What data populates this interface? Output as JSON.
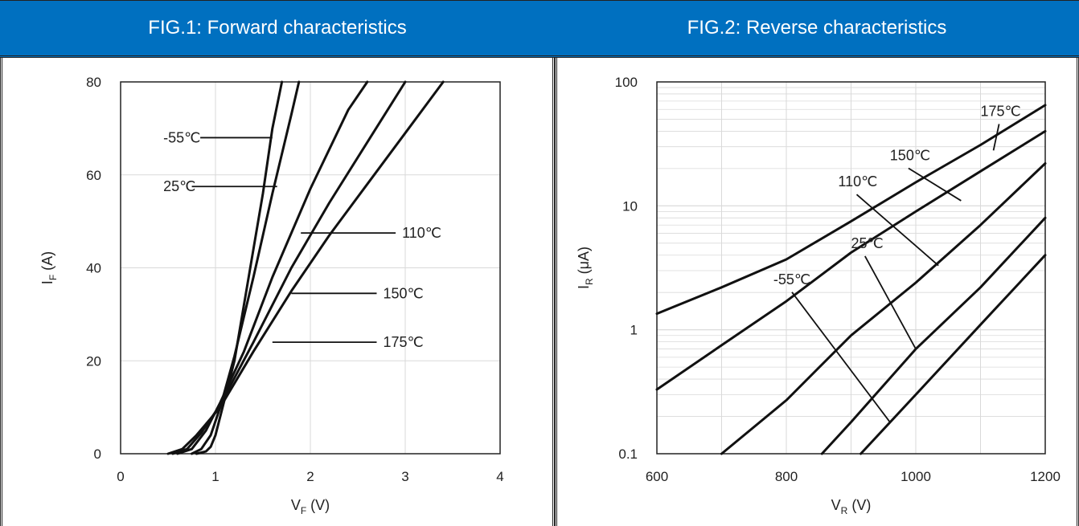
{
  "colors": {
    "header_bg": "#0070c0",
    "header_text": "#ffffff",
    "curve": "#111111",
    "grid": "#d9d9d9"
  },
  "chart_data": [
    {
      "type": "line",
      "title": "FIG.1: Forward characteristics",
      "xlabel": "V",
      "xlabel_sub": "F",
      "xlabel_unit": " (V)",
      "ylabel": "I",
      "ylabel_sub": "F",
      "ylabel_unit": " (A)",
      "xlim": [
        0,
        4
      ],
      "ylim": [
        0,
        80
      ],
      "xticks": [
        "0",
        "1",
        "2",
        "3",
        "4"
      ],
      "yticks": [
        "0",
        "20",
        "40",
        "60",
        "80"
      ],
      "grid": true,
      "series": [
        {
          "name": "-55℃",
          "points": [
            [
              0.8,
              0
            ],
            [
              0.9,
              0.5
            ],
            [
              0.95,
              1.5
            ],
            [
              1.0,
              4
            ],
            [
              1.1,
              12
            ],
            [
              1.2,
              20
            ],
            [
              1.3,
              32
            ],
            [
              1.4,
              44
            ],
            [
              1.5,
              56
            ],
            [
              1.6,
              70
            ],
            [
              1.7,
              80
            ]
          ]
        },
        {
          "name": "25℃",
          "points": [
            [
              0.75,
              0
            ],
            [
              0.85,
              1
            ],
            [
              0.95,
              4
            ],
            [
              1.05,
              10
            ],
            [
              1.2,
              21
            ],
            [
              1.4,
              38
            ],
            [
              1.6,
              56
            ],
            [
              1.8,
              73
            ],
            [
              1.88,
              80
            ]
          ]
        },
        {
          "name": "110℃",
          "points": [
            [
              0.6,
              0
            ],
            [
              0.75,
              1
            ],
            [
              0.9,
              5
            ],
            [
              1.05,
              11
            ],
            [
              1.3,
              22
            ],
            [
              1.6,
              38
            ],
            [
              2.0,
              57
            ],
            [
              2.4,
              74
            ],
            [
              2.6,
              80
            ]
          ]
        },
        {
          "name": "150℃",
          "points": [
            [
              0.55,
              0
            ],
            [
              0.7,
              1
            ],
            [
              0.85,
              4.5
            ],
            [
              1.05,
              10.5
            ],
            [
              1.4,
              24
            ],
            [
              1.8,
              40
            ],
            [
              2.2,
              54
            ],
            [
              2.6,
              67
            ],
            [
              3.0,
              80
            ]
          ]
        },
        {
          "name": "175℃",
          "points": [
            [
              0.5,
              0
            ],
            [
              0.65,
              1
            ],
            [
              0.8,
              4
            ],
            [
              1.05,
              10
            ],
            [
              1.4,
              22
            ],
            [
              1.8,
              35
            ],
            [
              2.2,
              47
            ],
            [
              2.6,
              58
            ],
            [
              3.0,
              69
            ],
            [
              3.4,
              80
            ]
          ]
        }
      ],
      "annotations": [
        {
          "text": "-55℃",
          "x": 0.45,
          "y": 68,
          "line_to": [
            1.6,
            68
          ]
        },
        {
          "text": "25℃",
          "x": 0.45,
          "y": 57.5,
          "line_to": [
            1.65,
            57.5
          ]
        },
        {
          "text": "110℃",
          "x": 2.95,
          "y": 47.5,
          "line_to": [
            1.9,
            47.5
          ]
        },
        {
          "text": "150℃",
          "x": 2.75,
          "y": 34.5,
          "line_to": [
            1.8,
            34.5
          ]
        },
        {
          "text": "175℃",
          "x": 2.75,
          "y": 24,
          "line_to": [
            1.6,
            24
          ]
        }
      ]
    },
    {
      "type": "line",
      "title": "FIG.2: Reverse characteristics",
      "xlabel": "V",
      "xlabel_sub": "R",
      "xlabel_unit": " (V)",
      "ylabel": "I",
      "ylabel_sub": "R",
      "ylabel_unit": " (μA)",
      "xlim": [
        600,
        1200
      ],
      "ylim": [
        0.1,
        100
      ],
      "yscale": "log",
      "xticks": [
        "600",
        "800",
        "1000",
        "1200"
      ],
      "yticks": [
        "0.1",
        "1",
        "10",
        "100"
      ],
      "grid": true,
      "series": [
        {
          "name": "175℃",
          "points": [
            [
              600,
              1.35
            ],
            [
              700,
              2.2
            ],
            [
              800,
              3.7
            ],
            [
              900,
              7.5
            ],
            [
              1000,
              15.5
            ],
            [
              1100,
              31
            ],
            [
              1200,
              65
            ]
          ]
        },
        {
          "name": "150℃",
          "points": [
            [
              600,
              0.33
            ],
            [
              700,
              0.75
            ],
            [
              800,
              1.7
            ],
            [
              900,
              4.2
            ],
            [
              1000,
              9
            ],
            [
              1100,
              19
            ],
            [
              1200,
              40
            ]
          ]
        },
        {
          "name": "110℃",
          "points": [
            [
              700,
              0.1
            ],
            [
              800,
              0.27
            ],
            [
              900,
              0.9
            ],
            [
              1000,
              2.4
            ],
            [
              1100,
              7
            ],
            [
              1200,
              22
            ]
          ]
        },
        {
          "name": "25℃",
          "points": [
            [
              855,
              0.1
            ],
            [
              900,
              0.18
            ],
            [
              1000,
              0.7
            ],
            [
              1100,
              2.2
            ],
            [
              1200,
              8
            ]
          ]
        },
        {
          "name": "-55℃",
          "points": [
            [
              915,
              0.1
            ],
            [
              1000,
              0.3
            ],
            [
              1100,
              1.1
            ],
            [
              1200,
              4
            ]
          ]
        }
      ],
      "annotations": [
        {
          "text": "175℃",
          "x": 1100,
          "y": 50,
          "line_to": [
            1120,
            28
          ]
        },
        {
          "text": "150℃",
          "x": 960,
          "y": 22,
          "line_to": [
            1070,
            11
          ]
        },
        {
          "text": "110℃",
          "x": 880,
          "y": 13.5,
          "line_to": [
            1035,
            3.3
          ]
        },
        {
          "text": "25℃",
          "x": 900,
          "y": 4.3,
          "line_to": [
            1000,
            0.7
          ]
        },
        {
          "text": "-55℃",
          "x": 780,
          "y": 2.2,
          "line_to": [
            960,
            0.18
          ]
        }
      ]
    }
  ]
}
